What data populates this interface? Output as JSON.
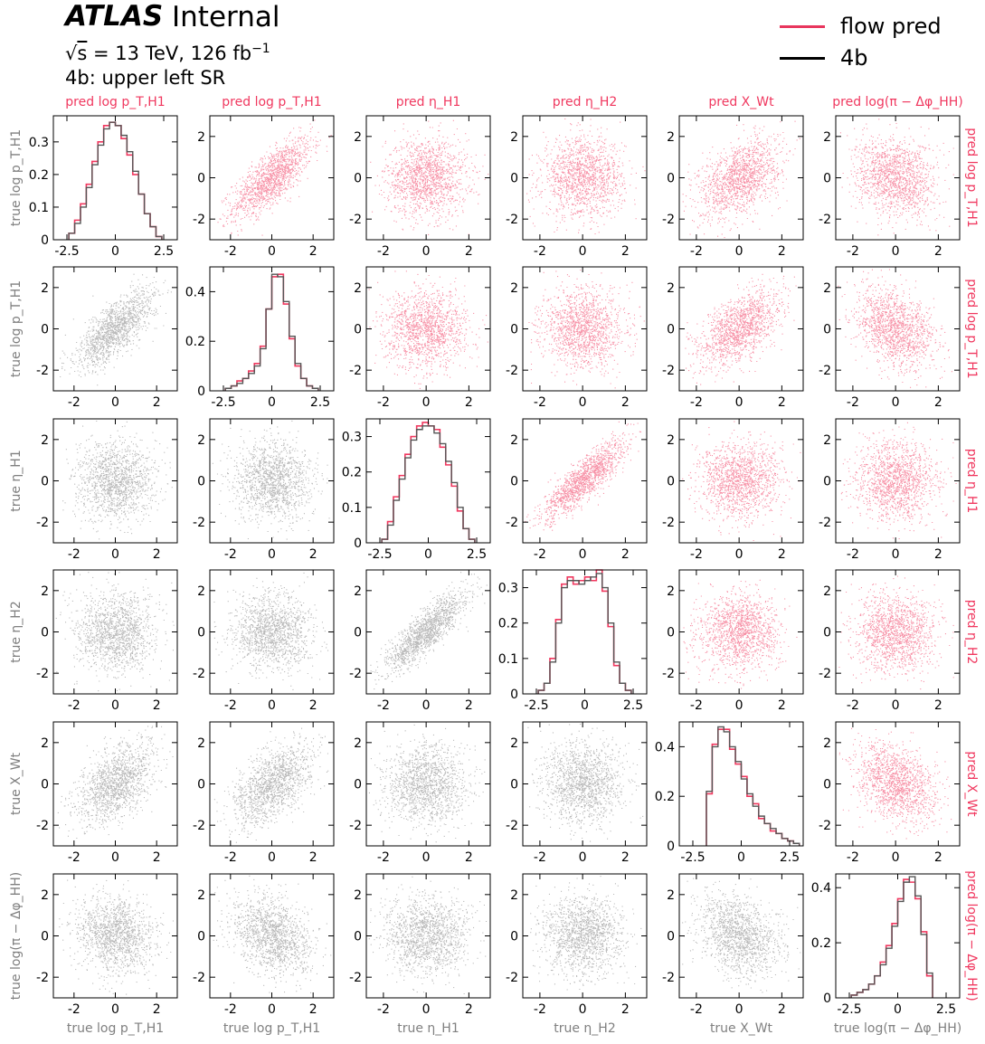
{
  "header": {
    "atlas": "ATLAS",
    "internal": "Internal",
    "energy_sqrt": "s",
    "energy_rest": " = 13 TeV, 126 fb",
    "energy_sup": "−1",
    "region": "4b: upper left SR"
  },
  "legend": [
    {
      "label": "flow pred",
      "color": "#e8365d"
    },
    {
      "label": "4b",
      "color": "#000000"
    }
  ],
  "colors": {
    "pred": "#f0385f",
    "true": "#7f7f7f"
  },
  "chart_data": {
    "type": "corner",
    "variables": [
      {
        "pred": "pred log p_T,H1",
        "true": "true log p_T,H1"
      },
      {
        "pred": "pred log p_T,H1",
        "true": "true log p_T,H1"
      },
      {
        "pred": "pred η_H1",
        "true": "true η_H1"
      },
      {
        "pred": "pred η_H2",
        "true": "true η_H2"
      },
      {
        "pred": "pred X_Wt",
        "true": "true X_Wt"
      },
      {
        "pred": "pred log(π − Δφ_HH)",
        "true": "true log(π − Δφ_HH)"
      }
    ],
    "column_labels": [
      "pred log p_T,H1",
      "pred log p_T,H1",
      "pred η_H1",
      "pred η_H2",
      "pred X_Wt",
      "pred log(π − Δφ_HH)"
    ],
    "row_labels_left": [
      "true log p_T,H1",
      "true log p_T,H1",
      "true η_H1",
      "true η_H2",
      "true X_Wt",
      "true log(π − Δφ_HH)"
    ],
    "row_labels_right": [
      "pred log p_T,H1",
      "pred log p_T,H1",
      "pred η_H1",
      "pred η_H2",
      "pred X_Wt",
      "pred log(π − Δφ_HH)"
    ],
    "bottom_labels": [
      "true log p_T,H1",
      "true log p_T,H1",
      "true η_H1",
      "true η_H2",
      "true X_Wt",
      "true log(π − Δφ_HH)"
    ],
    "scatter_xlim": [
      [
        -3,
        3
      ],
      [
        -3,
        3
      ],
      [
        -2.8,
        3.0
      ],
      [
        -2.8,
        3.0
      ],
      [
        -2.8,
        3.0
      ],
      [
        -2.8,
        3.0
      ]
    ],
    "scatter_ylim": [
      -3,
      3
    ],
    "scatter_ticks": [
      -2,
      0,
      2
    ],
    "diagonal": [
      {
        "xlim": [
          -3.2,
          3.2
        ],
        "ylim": [
          0,
          0.38
        ],
        "xticks": [
          -2.5,
          0.0,
          2.5
        ],
        "yticks": [
          0.0,
          0.1,
          0.2,
          0.3
        ],
        "bin_edges": [
          -2.4,
          -2.1,
          -1.8,
          -1.5,
          -1.2,
          -0.9,
          -0.6,
          -0.3,
          0.0,
          0.3,
          0.6,
          0.9,
          1.2,
          1.5,
          1.8,
          2.1,
          2.4
        ],
        "true": [
          0.02,
          0.05,
          0.1,
          0.16,
          0.23,
          0.29,
          0.34,
          0.36,
          0.35,
          0.32,
          0.27,
          0.21,
          0.14,
          0.08,
          0.04,
          0.01
        ],
        "pred": [
          0.02,
          0.06,
          0.11,
          0.17,
          0.24,
          0.3,
          0.35,
          0.36,
          0.35,
          0.31,
          0.26,
          0.2,
          0.14,
          0.08,
          0.04,
          0.01
        ]
      },
      {
        "xlim": [
          -3.2,
          3.2
        ],
        "ylim": [
          0,
          0.5
        ],
        "xticks": [
          -2.5,
          0.0,
          2.5
        ],
        "yticks": [
          0.0,
          0.2,
          0.4
        ],
        "bin_edges": [
          -2.4,
          -2.1,
          -1.8,
          -1.5,
          -1.2,
          -0.9,
          -0.6,
          -0.3,
          0.0,
          0.3,
          0.6,
          0.9,
          1.2,
          1.5,
          1.8,
          2.1,
          2.4
        ],
        "true": [
          0.01,
          0.02,
          0.03,
          0.05,
          0.07,
          0.1,
          0.17,
          0.33,
          0.47,
          0.46,
          0.36,
          0.22,
          0.11,
          0.05,
          0.02,
          0.01
        ],
        "pred": [
          0.01,
          0.02,
          0.04,
          0.05,
          0.08,
          0.11,
          0.18,
          0.33,
          0.46,
          0.47,
          0.35,
          0.21,
          0.1,
          0.05,
          0.02,
          0.01
        ]
      },
      {
        "xlim": [
          -3.2,
          3.2
        ],
        "ylim": [
          0,
          0.35
        ],
        "xticks": [
          -2.5,
          0.0,
          2.5
        ],
        "yticks": [
          0.0,
          0.1,
          0.2,
          0.3
        ],
        "bin_edges": [
          -2.4,
          -2.1,
          -1.8,
          -1.5,
          -1.2,
          -0.9,
          -0.6,
          -0.3,
          0.0,
          0.3,
          0.6,
          0.9,
          1.2,
          1.5,
          1.8,
          2.1,
          2.4
        ],
        "true": [
          0.01,
          0.05,
          0.12,
          0.18,
          0.24,
          0.29,
          0.32,
          0.33,
          0.33,
          0.31,
          0.28,
          0.23,
          0.17,
          0.1,
          0.04,
          0.01
        ],
        "pred": [
          0.01,
          0.06,
          0.13,
          0.19,
          0.25,
          0.3,
          0.33,
          0.34,
          0.33,
          0.32,
          0.27,
          0.22,
          0.16,
          0.09,
          0.04,
          0.01
        ]
      },
      {
        "xlim": [
          -3.2,
          3.2
        ],
        "ylim": [
          0,
          0.35
        ],
        "xticks": [
          -2.5,
          0.0,
          2.5
        ],
        "yticks": [
          0.0,
          0.1,
          0.2,
          0.3
        ],
        "bin_edges": [
          -2.4,
          -2.1,
          -1.8,
          -1.5,
          -1.2,
          -0.9,
          -0.6,
          -0.3,
          0.0,
          0.3,
          0.6,
          0.9,
          1.2,
          1.5,
          1.8,
          2.1,
          2.4
        ],
        "true": [
          0.01,
          0.03,
          0.09,
          0.2,
          0.3,
          0.32,
          0.32,
          0.31,
          0.32,
          0.33,
          0.34,
          0.3,
          0.2,
          0.09,
          0.03,
          0.01
        ],
        "pred": [
          0.01,
          0.03,
          0.1,
          0.21,
          0.31,
          0.33,
          0.31,
          0.32,
          0.33,
          0.32,
          0.35,
          0.29,
          0.19,
          0.08,
          0.03,
          0.01
        ]
      },
      {
        "xlim": [
          -3.2,
          3.2
        ],
        "ylim": [
          0,
          0.5
        ],
        "xticks": [
          -2.5,
          0.0,
          2.5
        ],
        "yticks": [
          0.0,
          0.2,
          0.4
        ],
        "bin_edges": [
          -1.8,
          -1.5,
          -1.2,
          -0.9,
          -0.6,
          -0.3,
          0.0,
          0.3,
          0.6,
          0.9,
          1.2,
          1.5,
          1.8,
          2.1,
          2.4,
          2.7,
          3.0
        ],
        "true": [
          0.22,
          0.4,
          0.48,
          0.46,
          0.4,
          0.34,
          0.27,
          0.21,
          0.16,
          0.12,
          0.09,
          0.07,
          0.05,
          0.03,
          0.02,
          0.01
        ],
        "pred": [
          0.21,
          0.41,
          0.47,
          0.47,
          0.39,
          0.33,
          0.28,
          0.2,
          0.17,
          0.11,
          0.09,
          0.06,
          0.05,
          0.03,
          0.02,
          0.01
        ]
      },
      {
        "xlim": [
          -3.2,
          3.2
        ],
        "ylim": [
          0,
          0.45
        ],
        "xticks": [
          -2.5,
          0.0,
          2.5
        ],
        "yticks": [
          0.0,
          0.2,
          0.4
        ],
        "bin_edges": [
          -2.4,
          -2.1,
          -1.8,
          -1.5,
          -1.2,
          -0.9,
          -0.6,
          -0.3,
          0.0,
          0.3,
          0.6,
          0.9,
          1.2,
          1.5,
          1.8
        ],
        "true": [
          0.01,
          0.02,
          0.03,
          0.05,
          0.08,
          0.12,
          0.18,
          0.26,
          0.35,
          0.42,
          0.44,
          0.37,
          0.23,
          0.09
        ],
        "pred": [
          0.01,
          0.02,
          0.03,
          0.05,
          0.08,
          0.13,
          0.19,
          0.27,
          0.36,
          0.43,
          0.42,
          0.36,
          0.24,
          0.08
        ]
      }
    ],
    "correlations": [
      [
        0,
        0.0,
        0.0,
        0.0,
        0.0,
        0.0
      ],
      [
        0.75,
        0,
        0.0,
        0.0,
        0.0,
        0.0
      ],
      [
        0.0,
        0.0,
        0,
        0.0,
        0.0,
        0.0
      ],
      [
        0.0,
        0.0,
        0.85,
        0,
        0.0,
        0.0
      ],
      [
        0.45,
        0.55,
        0.0,
        0.0,
        0,
        0.0
      ],
      [
        -0.15,
        -0.3,
        0.0,
        0.0,
        -0.3,
        0
      ]
    ]
  }
}
